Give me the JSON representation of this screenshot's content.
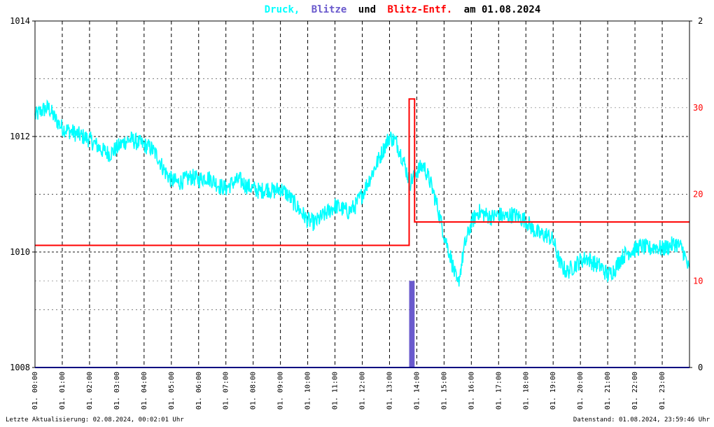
{
  "title": {
    "part1": "Druck,",
    "part2": "Blitze",
    "part3": "und",
    "part4": "Blitz-Entf.",
    "part5": "am 01.08.2024"
  },
  "footer": {
    "left": "Letzte Aktualisierung: 02.08.2024, 00:02:01 Uhr",
    "right": "Datenstand: 01.08.2024, 23:59:46 Uhr"
  },
  "colors": {
    "pressure": "#00ffff",
    "strikes": "#6a5acd",
    "distance": "#ff0000",
    "title_text": "#000000",
    "distance_axis": "#ff0000",
    "frame": "#000000",
    "baseline": "#000080"
  },
  "chart_data": {
    "type": "line",
    "x_range_hours": [
      0,
      24
    ],
    "x_tick_labels": [
      "01. 00:00",
      "01. 01:00",
      "01. 02:00",
      "01. 03:00",
      "01. 04:00",
      "01. 05:00",
      "01. 06:00",
      "01. 07:00",
      "01. 08:00",
      "01. 09:00",
      "01. 10:00",
      "01. 11:00",
      "01. 12:00",
      "01. 13:00",
      "01. 14:00",
      "01. 15:00",
      "01. 16:00",
      "01. 17:00",
      "01. 18:00",
      "01. 19:00",
      "01. 20:00",
      "01. 21:00",
      "01. 22:00",
      "01. 23:00"
    ],
    "y_left": {
      "ticks": [
        1008,
        1010,
        1012,
        1014
      ],
      "range": [
        1008,
        1014
      ]
    },
    "y_right_outer": {
      "ticks": [
        0,
        2
      ],
      "range": [
        0,
        2
      ]
    },
    "y_right_inner": {
      "ticks": [
        10,
        20,
        30
      ],
      "range": [
        0,
        40
      ]
    },
    "grid": true,
    "series": [
      {
        "name": "Druck",
        "axis": "left",
        "x": [
          0,
          0.25,
          0.5,
          0.75,
          1,
          1.25,
          1.5,
          1.75,
          2,
          2.25,
          2.5,
          2.75,
          3,
          3.25,
          3.5,
          3.75,
          4,
          4.25,
          4.5,
          4.75,
          5,
          5.25,
          5.5,
          5.75,
          6,
          6.25,
          6.5,
          6.75,
          7,
          7.25,
          7.5,
          7.75,
          8,
          8.25,
          8.5,
          8.75,
          9,
          9.25,
          9.5,
          9.75,
          10,
          10.25,
          10.5,
          10.75,
          11,
          11.25,
          11.5,
          11.75,
          12,
          12.25,
          12.5,
          12.75,
          13,
          13.25,
          13.5,
          13.75,
          14,
          14.25,
          14.5,
          14.75,
          15,
          15.25,
          15.5,
          15.75,
          16,
          16.25,
          16.5,
          16.75,
          17,
          17.25,
          17.5,
          17.75,
          18,
          18.25,
          18.5,
          18.75,
          19,
          19.25,
          19.5,
          19.75,
          20,
          20.25,
          20.5,
          20.75,
          21,
          21.25,
          21.5,
          21.75,
          22,
          22.25,
          22.5,
          22.75,
          23,
          23.25,
          23.5,
          23.75,
          24
        ],
        "y": [
          1012.35,
          1012.45,
          1012.5,
          1012.3,
          1012.15,
          1012.1,
          1012.05,
          1012,
          1011.95,
          1011.85,
          1011.75,
          1011.7,
          1011.8,
          1011.9,
          1011.95,
          1011.9,
          1011.85,
          1011.8,
          1011.65,
          1011.4,
          1011.25,
          1011.2,
          1011.25,
          1011.3,
          1011.25,
          1011.3,
          1011.25,
          1011.15,
          1011.1,
          1011.2,
          1011.25,
          1011.15,
          1011.1,
          1011.05,
          1011.1,
          1011.05,
          1011.1,
          1011,
          1010.85,
          1010.7,
          1010.55,
          1010.5,
          1010.6,
          1010.7,
          1010.8,
          1010.75,
          1010.7,
          1010.8,
          1011,
          1011.25,
          1011.5,
          1011.75,
          1012,
          1011.9,
          1011.6,
          1011.2,
          1011.4,
          1011.5,
          1011.2,
          1010.8,
          1010.3,
          1009.9,
          1009.4,
          1010.1,
          1010.5,
          1010.7,
          1010.65,
          1010.6,
          1010.65,
          1010.6,
          1010.65,
          1010.6,
          1010.55,
          1010.4,
          1010.3,
          1010.3,
          1010.2,
          1009.8,
          1009.65,
          1009.75,
          1009.85,
          1009.9,
          1009.8,
          1009.75,
          1009.6,
          1009.7,
          1009.9,
          1010,
          1010.05,
          1010.1,
          1010.05,
          1010.1,
          1010.05,
          1010.1,
          1010.15,
          1010.05,
          1009.65
        ],
        "noise_amplitude": 0.15
      },
      {
        "name": "Blitze",
        "axis": "right_outer",
        "x": [
          13.72,
          13.92
        ],
        "y": [
          0.5,
          0.5
        ],
        "kind": "bar"
      },
      {
        "name": "Blitz-Entf.",
        "axis": "right_inner",
        "x": [
          0,
          13.72,
          13.72,
          13.92,
          13.92,
          24
        ],
        "y": [
          14.1,
          14.1,
          31,
          31,
          16.8,
          16.8
        ],
        "kind": "step"
      }
    ]
  }
}
